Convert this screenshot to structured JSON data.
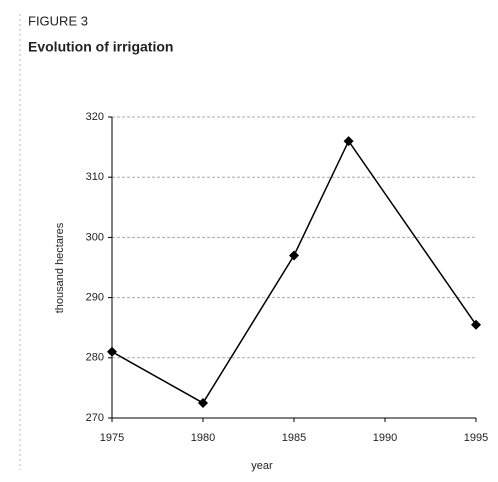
{
  "chart_data": {
    "type": "line",
    "figure_label": "FIGURE 3",
    "title": "Evolution of irrigation",
    "x_label": "year",
    "y_label": "thousand hectares",
    "x": [
      1975,
      1980,
      1985,
      1988,
      1995
    ],
    "series": [
      {
        "name": "irrigation",
        "color": "#000000",
        "values": [
          281,
          272.5,
          297,
          316,
          285.5
        ]
      }
    ],
    "xlim": [
      1975,
      1995
    ],
    "xticks": [
      1975,
      1980,
      1985,
      1990,
      1995
    ],
    "ylim": [
      270,
      320
    ],
    "yticks": [
      270,
      280,
      290,
      300,
      310,
      320
    ],
    "grid": true
  }
}
